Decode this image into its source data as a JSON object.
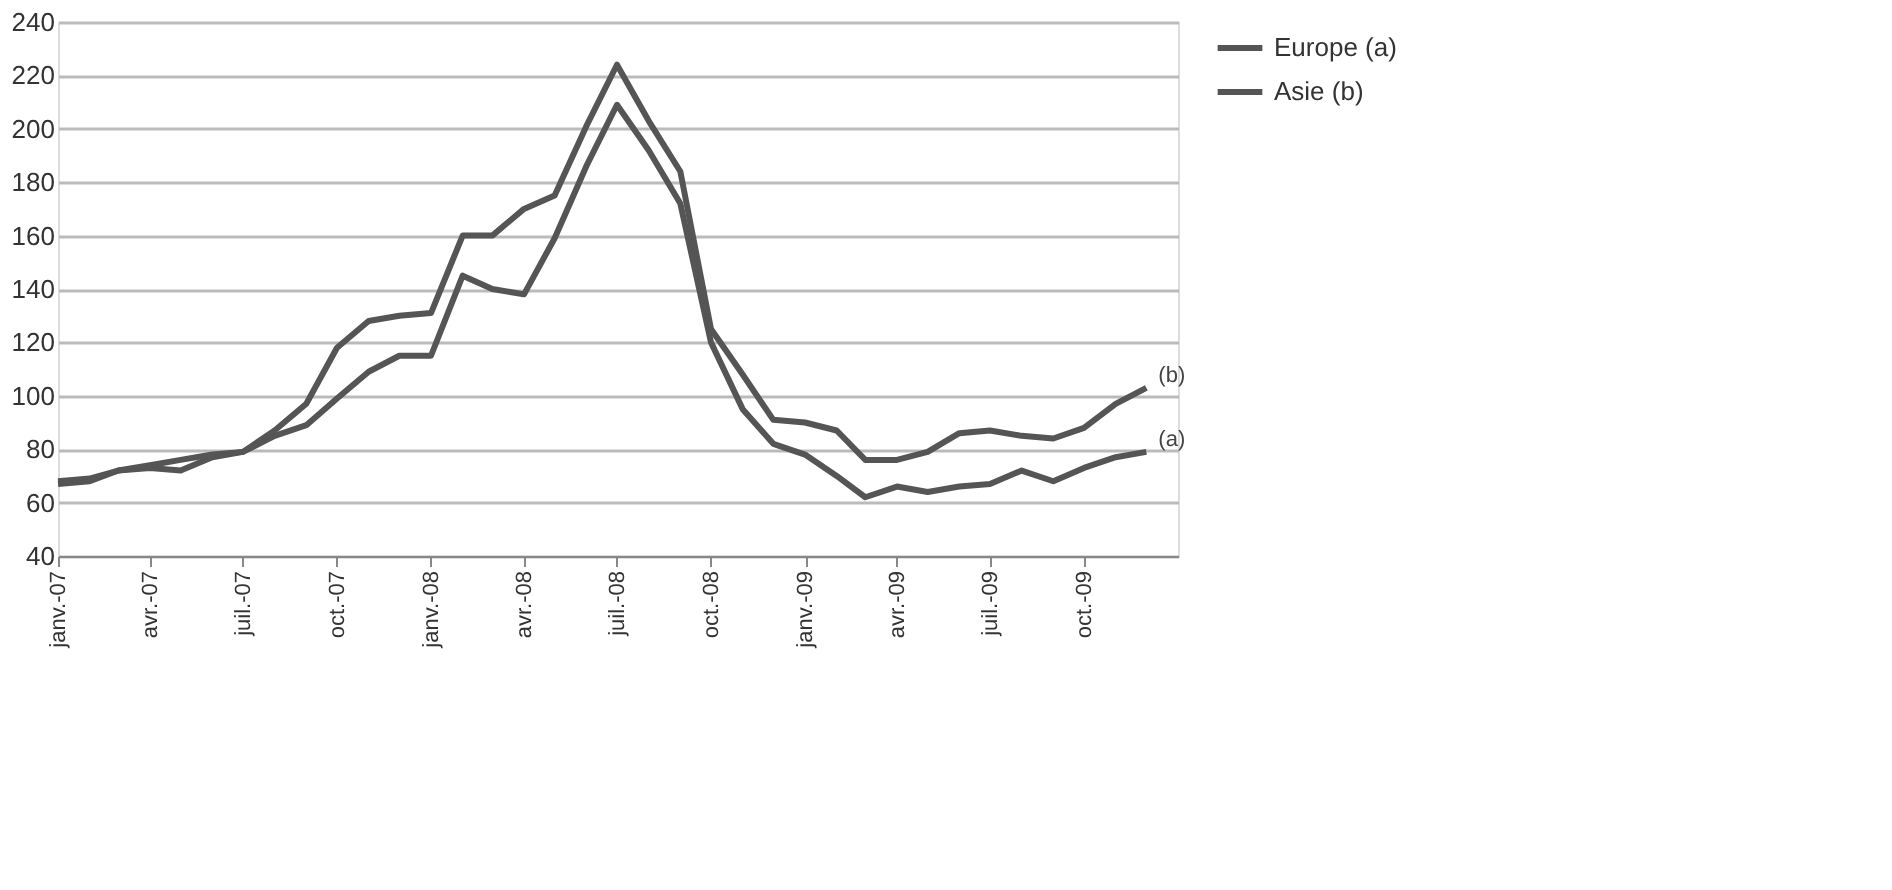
{
  "chart_data": {
    "type": "line",
    "x": [
      "2007-01",
      "2007-02",
      "2007-03",
      "2007-04",
      "2007-05",
      "2007-06",
      "2007-07",
      "2007-08",
      "2007-09",
      "2007-10",
      "2007-11",
      "2007-12",
      "2008-01",
      "2008-02",
      "2008-03",
      "2008-04",
      "2008-05",
      "2008-06",
      "2008-07",
      "2008-08",
      "2008-09",
      "2008-10",
      "2008-11",
      "2008-12",
      "2009-01",
      "2009-02",
      "2009-03",
      "2009-04",
      "2009-05",
      "2009-06",
      "2009-07",
      "2009-08",
      "2009-09",
      "2009-10",
      "2009-11",
      "2009-12"
    ],
    "series": [
      {
        "name": "Europe (a)",
        "color": "#555555",
        "values": [
          67,
          68,
          72,
          73,
          72,
          77,
          79,
          85,
          89,
          99,
          109,
          115,
          115,
          145,
          140,
          138,
          159,
          186,
          209,
          192,
          172,
          120,
          95,
          82,
          78,
          70,
          62,
          66,
          64,
          66,
          67,
          72,
          68,
          73,
          77,
          79
        ]
      },
      {
        "name": "Asie (b)",
        "color": "#555555",
        "values": [
          68,
          69,
          72,
          74,
          76,
          78,
          79,
          87,
          97,
          118,
          128,
          130,
          131,
          160,
          160,
          170,
          175,
          201,
          224,
          203,
          184,
          125,
          108,
          91,
          90,
          87,
          76,
          76,
          79,
          86,
          87,
          85,
          84,
          88,
          97,
          103
        ]
      }
    ],
    "xlim": [
      "2007-01",
      "2010-01"
    ],
    "xticks": [
      {
        "value": "2007-01",
        "label": "janv.-07"
      },
      {
        "value": "2007-04",
        "label": "avr.-07"
      },
      {
        "value": "2007-07",
        "label": "juil.-07"
      },
      {
        "value": "2007-10",
        "label": "oct.-07"
      },
      {
        "value": "2008-01",
        "label": "janv.-08"
      },
      {
        "value": "2008-04",
        "label": "avr.-08"
      },
      {
        "value": "2008-07",
        "label": "juil.-08"
      },
      {
        "value": "2008-10",
        "label": "oct.-08"
      },
      {
        "value": "2009-01",
        "label": "janv.-09"
      },
      {
        "value": "2009-04",
        "label": "avr.-09"
      },
      {
        "value": "2009-07",
        "label": "juil.-09"
      },
      {
        "value": "2009-10",
        "label": "oct.-09"
      }
    ],
    "ylim": [
      40,
      240
    ],
    "yticks": [
      40,
      60,
      80,
      100,
      120,
      140,
      160,
      180,
      200,
      220,
      240
    ],
    "grid": "y",
    "legend": "right",
    "marker": "none",
    "line_style": "solid",
    "annotations": [
      {
        "text": "(b)",
        "x": "2009-12",
        "y": 103
      },
      {
        "text": "(a)",
        "x": "2009-12",
        "y": 79
      }
    ]
  }
}
